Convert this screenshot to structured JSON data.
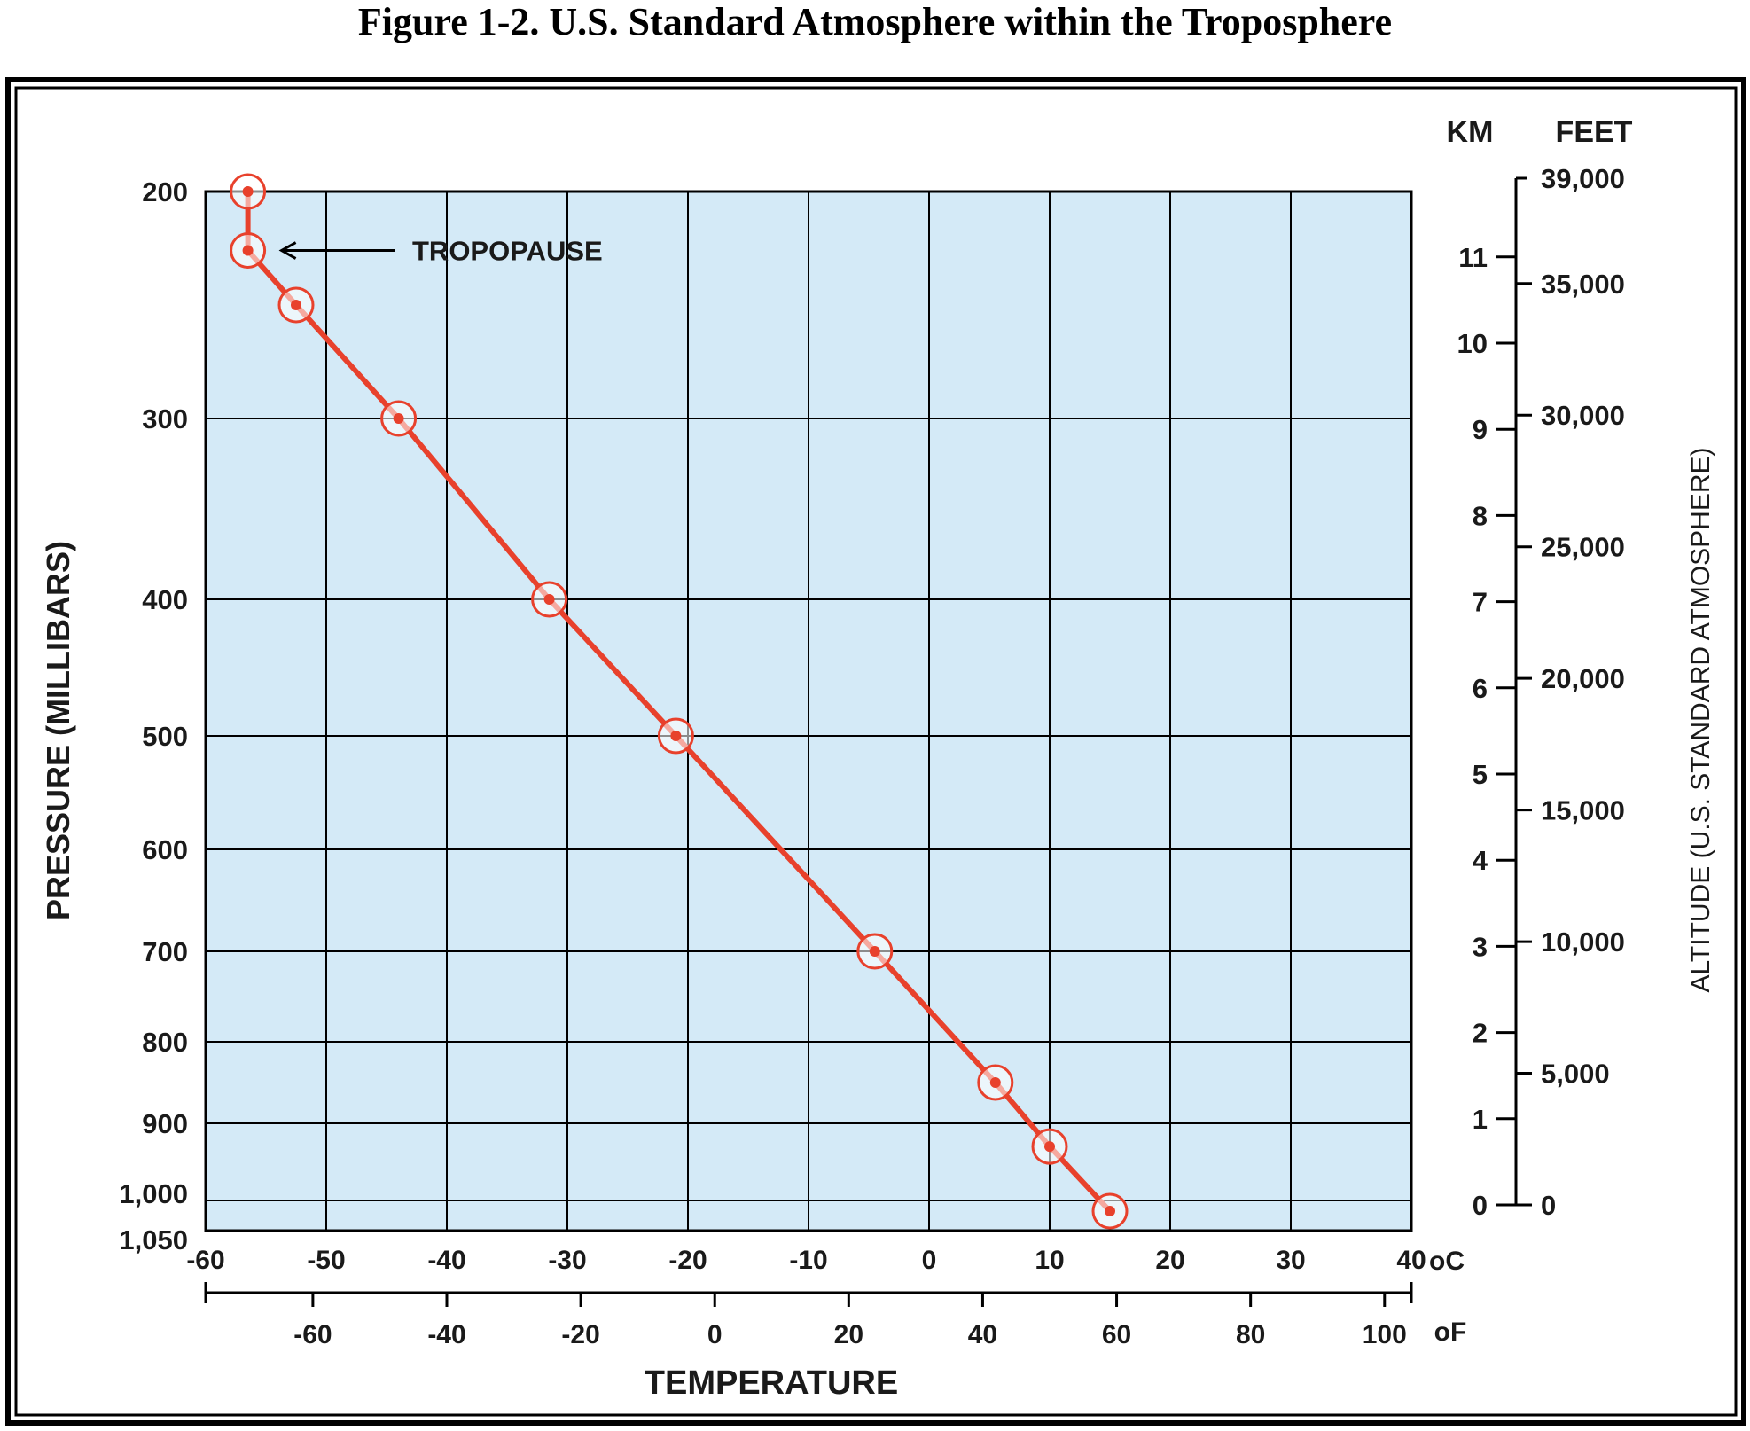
{
  "title": "Figure 1-2. U.S. Standard Atmosphere within the Troposphere",
  "colors": {
    "plot_background": "#d4eaf7",
    "profile_line": "#e8412c",
    "grid": "#000000"
  },
  "chart_data": {
    "type": "line",
    "title": "Figure 1-2. U.S. Standard Atmosphere within the Troposphere",
    "xlabel": "TEMPERATURE",
    "ylabel": "PRESSURE (MILLIBARS)",
    "y2label": "ALTITUDE (U.S. STANDARD ATMOSPHERE)",
    "x_unit_celsius": "oC",
    "x_unit_fahrenheit": "oF",
    "altitude_unit_km": "KM",
    "altitude_unit_feet": "FEET",
    "xlim_celsius": [
      -60,
      40
    ],
    "ylim_pressure": [
      1050,
      200
    ],
    "y_scale": "pressure (non-linear, decreasing upward)",
    "grid": true,
    "celsius_ticks": [
      "-60",
      "-50",
      "-40",
      "-30",
      "-20",
      "-10",
      "0",
      "10",
      "20",
      "30",
      "40"
    ],
    "fahrenheit_ticks": [
      {
        "f": -60,
        "label": "-60"
      },
      {
        "f": -40,
        "label": "-40"
      },
      {
        "f": -20,
        "label": "-20"
      },
      {
        "f": 0,
        "label": "0"
      },
      {
        "f": 20,
        "label": "20"
      },
      {
        "f": 40,
        "label": "40"
      },
      {
        "f": 60,
        "label": "60"
      },
      {
        "f": 80,
        "label": "80"
      },
      {
        "f": 100,
        "label": "100"
      }
    ],
    "pressure_ticks": [
      {
        "p": 200,
        "label": "200"
      },
      {
        "p": 300,
        "label": "300"
      },
      {
        "p": 400,
        "label": "400"
      },
      {
        "p": 500,
        "label": "500"
      },
      {
        "p": 600,
        "label": "600"
      },
      {
        "p": 700,
        "label": "700"
      },
      {
        "p": 800,
        "label": "800"
      },
      {
        "p": 900,
        "label": "900"
      },
      {
        "p": 1000,
        "label": "1,000"
      },
      {
        "p": 1050,
        "label": "1,050"
      }
    ],
    "pressure_gridlines": [
      200,
      300,
      400,
      500,
      600,
      700,
      800,
      900,
      1000
    ],
    "km_ticks": [
      "0",
      "1",
      "2",
      "3",
      "4",
      "5",
      "6",
      "7",
      "8",
      "9",
      "10",
      "11"
    ],
    "feet_ticks": [
      {
        "ft": 0,
        "label": "0"
      },
      {
        "ft": 5000,
        "label": "5,000"
      },
      {
        "ft": 10000,
        "label": "10,000"
      },
      {
        "ft": 15000,
        "label": "15,000"
      },
      {
        "ft": 20000,
        "label": "20,000"
      },
      {
        "ft": 25000,
        "label": "25,000"
      },
      {
        "ft": 30000,
        "label": "30,000"
      },
      {
        "ft": 35000,
        "label": "35,000"
      },
      {
        "ft": 39000,
        "label": "39,000"
      }
    ],
    "series": [
      {
        "points": [
          {
            "t": 15,
            "p": 1013
          },
          {
            "t": 10,
            "p": 930
          },
          {
            "t": 5.5,
            "p": 850
          },
          {
            "t": -4.5,
            "p": 700
          },
          {
            "t": -21,
            "p": 500
          },
          {
            "t": -31.5,
            "p": 400
          },
          {
            "t": -44,
            "p": 300
          },
          {
            "t": -52.5,
            "p": 250
          },
          {
            "t": -56.5,
            "p": 226
          },
          {
            "t": -56.5,
            "p": 200
          }
        ]
      }
    ],
    "annotations": [
      {
        "text": "TROPOPAUSE",
        "t": -56.5,
        "p": 226
      }
    ]
  }
}
